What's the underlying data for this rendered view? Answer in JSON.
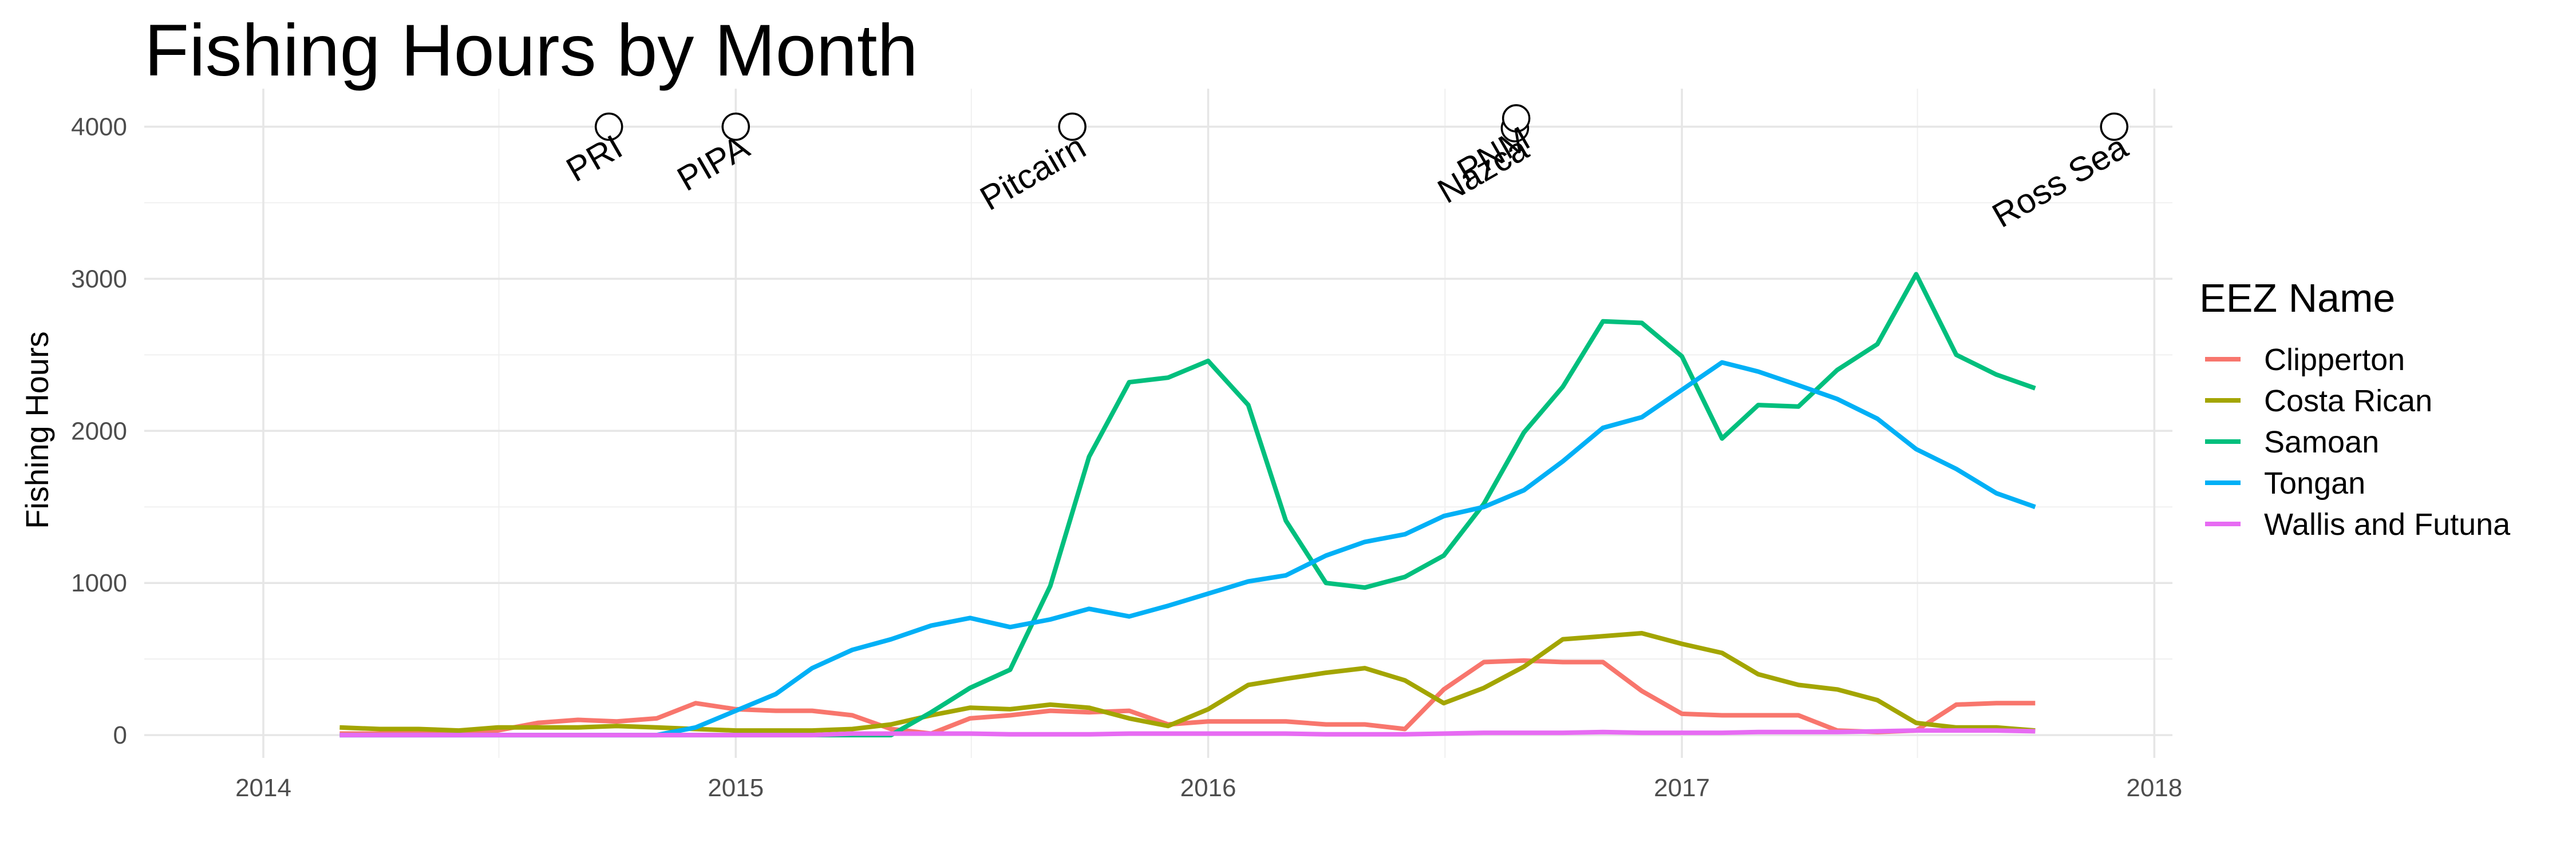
{
  "chart_data": {
    "type": "line",
    "title": "Fishing Hours by Month",
    "xlabel": "",
    "ylabel": "Fishing Hours",
    "x_date_range": [
      "2013-10-01",
      "2018-01-15"
    ],
    "x_ticks": [
      "2014",
      "2015",
      "2016",
      "2017",
      "2018"
    ],
    "x_tick_dates": [
      "2014-01-01",
      "2015-01-01",
      "2016-01-01",
      "2017-01-01",
      "2018-01-01"
    ],
    "ylim": [
      -150,
      4250
    ],
    "y_ticks": [
      0,
      1000,
      2000,
      3000,
      4000
    ],
    "grid": true,
    "legend_title": "EEZ Name",
    "legend_position": "right",
    "dates": [
      "2014-03-01",
      "2014-04-01",
      "2014-05-01",
      "2014-06-01",
      "2014-07-01",
      "2014-08-01",
      "2014-09-01",
      "2014-10-01",
      "2014-11-01",
      "2014-12-01",
      "2015-01-01",
      "2015-02-01",
      "2015-03-01",
      "2015-04-01",
      "2015-05-01",
      "2015-06-01",
      "2015-07-01",
      "2015-08-01",
      "2015-09-01",
      "2015-10-01",
      "2015-11-01",
      "2015-12-01",
      "2016-01-01",
      "2016-02-01",
      "2016-03-01",
      "2016-04-01",
      "2016-05-01",
      "2016-06-01",
      "2016-07-01",
      "2016-08-01",
      "2016-09-01",
      "2016-10-01",
      "2016-11-01",
      "2016-12-01",
      "2017-01-01",
      "2017-02-01",
      "2017-03-01",
      "2017-04-01",
      "2017-05-01",
      "2017-06-01",
      "2017-07-01",
      "2017-08-01",
      "2017-09-01",
      "2017-10-01"
    ],
    "series": [
      {
        "name": "Clipperton",
        "color": "#F8766D",
        "values": [
          10,
          10,
          10,
          20,
          30,
          80,
          100,
          90,
          110,
          210,
          170,
          160,
          160,
          130,
          40,
          10,
          110,
          130,
          160,
          150,
          160,
          70,
          90,
          90,
          90,
          70,
          70,
          40,
          300,
          480,
          490,
          480,
          480,
          290,
          140,
          130,
          130,
          130,
          30,
          20,
          30,
          200,
          210,
          210
        ]
      },
      {
        "name": "Costa Rican",
        "color": "#A3A500",
        "values": [
          50,
          40,
          40,
          30,
          50,
          50,
          50,
          60,
          50,
          40,
          30,
          30,
          30,
          40,
          70,
          130,
          180,
          170,
          200,
          180,
          110,
          60,
          170,
          330,
          370,
          410,
          440,
          360,
          210,
          310,
          450,
          630,
          650,
          670,
          600,
          540,
          400,
          330,
          300,
          230,
          80,
          50,
          50,
          30
        ]
      },
      {
        "name": "Samoan",
        "color": "#00BF7D",
        "values": [
          0,
          0,
          0,
          0,
          0,
          0,
          0,
          0,
          0,
          0,
          0,
          0,
          0,
          0,
          0,
          150,
          310,
          430,
          980,
          1830,
          2320,
          2350,
          2460,
          2170,
          1410,
          1000,
          970,
          1040,
          1180,
          1520,
          1990,
          2290,
          2720,
          2710,
          2490,
          1950,
          2170,
          2160,
          2400,
          2570,
          3030,
          2500,
          2370,
          2280
        ]
      },
      {
        "name": "Tongan",
        "color": "#00B0F6",
        "values": [
          0,
          0,
          0,
          0,
          0,
          0,
          0,
          0,
          0,
          50,
          160,
          270,
          440,
          560,
          630,
          720,
          770,
          710,
          760,
          830,
          780,
          850,
          930,
          1010,
          1050,
          1180,
          1270,
          1320,
          1440,
          1500,
          1610,
          1800,
          2020,
          2090,
          2270,
          2450,
          2390,
          2300,
          2210,
          2080,
          1880,
          1750,
          1590,
          1500
        ]
      },
      {
        "name": "Wallis and Futuna",
        "color": "#E76BF3",
        "values": [
          0,
          0,
          0,
          0,
          0,
          0,
          0,
          0,
          0,
          0,
          0,
          0,
          0,
          10,
          10,
          10,
          10,
          5,
          5,
          5,
          10,
          10,
          10,
          10,
          10,
          5,
          5,
          5,
          10,
          15,
          15,
          15,
          20,
          15,
          15,
          15,
          20,
          20,
          20,
          25,
          30,
          30,
          30,
          25
        ]
      }
    ],
    "annotations": [
      {
        "label": "PRI",
        "date": "2014-09-25",
        "y": 4000
      },
      {
        "label": "PIPA",
        "date": "2015-01-01",
        "y": 4000
      },
      {
        "label": "Pitcairn",
        "date": "2015-09-18",
        "y": 4000
      },
      {
        "label": "Nazca",
        "date": "2016-08-25",
        "y": 3990
      },
      {
        "label": "PNM",
        "date": "2016-08-26",
        "y": 4055
      },
      {
        "label": "Ross Sea",
        "date": "2017-12-01",
        "y": 4000
      }
    ]
  }
}
